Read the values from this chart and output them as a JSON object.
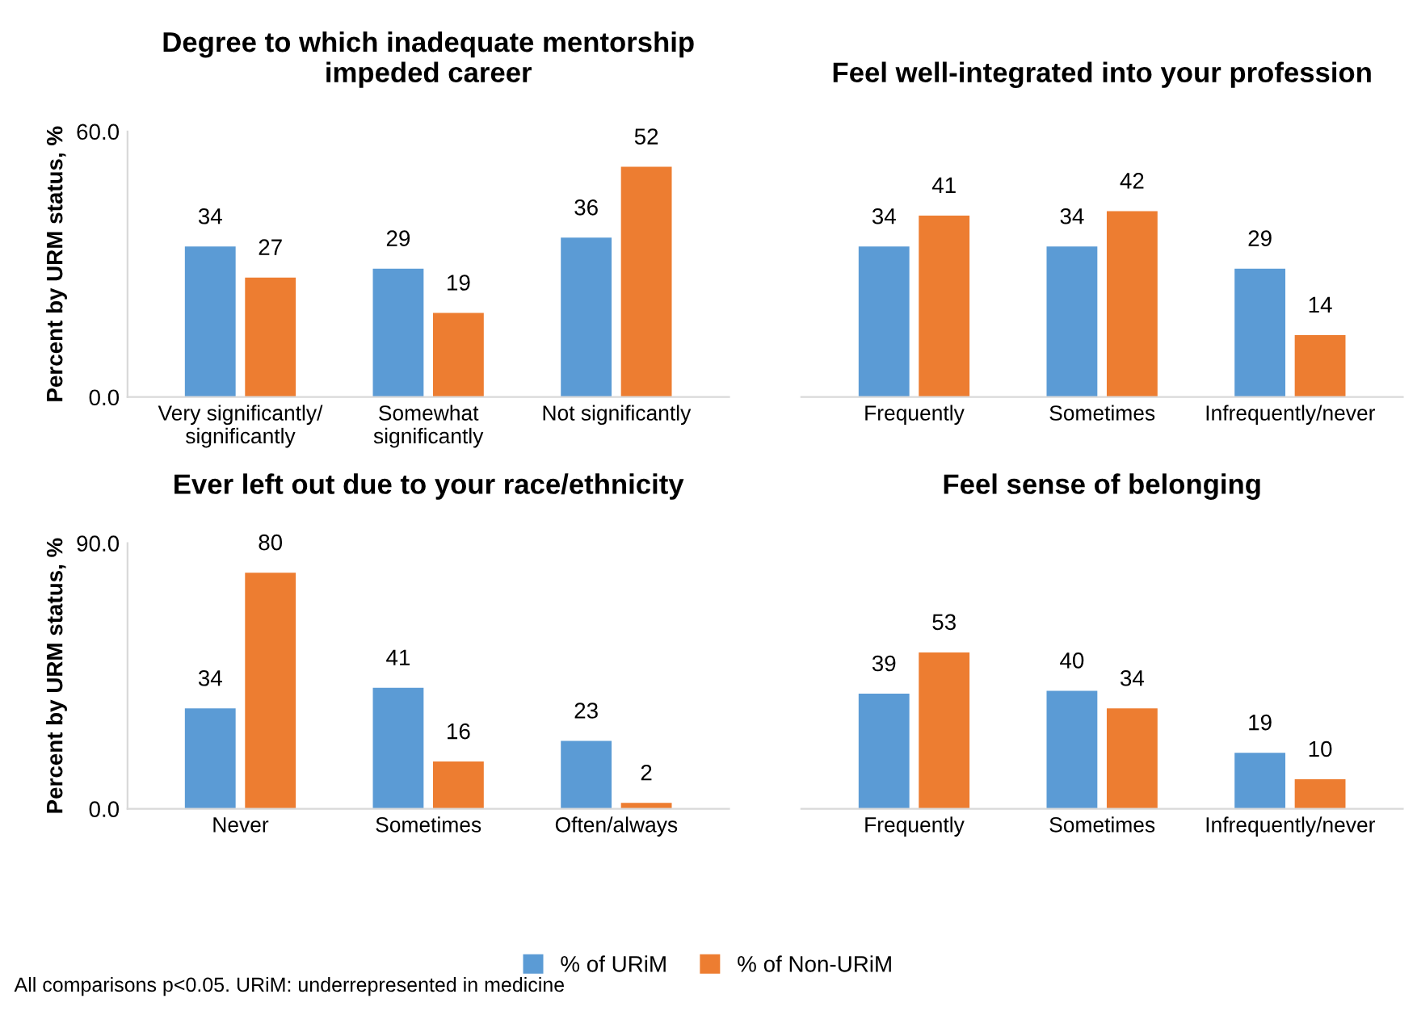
{
  "chart_data": [
    {
      "type": "bar",
      "title": "Degree to which inadequate mentorship\nimpeded career",
      "ylabel": "Percent by URM status, %",
      "categories": [
        "Very significantly/\nsignificantly",
        "Somewhat\nsignificantly",
        "Not significantly"
      ],
      "series": [
        {
          "name": "% of URiM",
          "color": "#5b9bd5",
          "values": [
            34,
            29,
            36
          ]
        },
        {
          "name": "% of Non-URiM",
          "color": "#ed7d31",
          "values": [
            27,
            19,
            52
          ]
        }
      ],
      "ylim": [
        0,
        60
      ],
      "yticks": [
        {
          "value": 0,
          "label": "0.0"
        },
        {
          "value": 60,
          "label": "60.0"
        }
      ],
      "data_labels": true,
      "grid": false,
      "legend": "bottom"
    },
    {
      "type": "bar",
      "title": "Feel well-integrated into your profession",
      "categories": [
        "Frequently",
        "Sometimes",
        "Infrequently/never"
      ],
      "series": [
        {
          "color": "#5b9bd5",
          "values": [
            34,
            34,
            29
          ]
        },
        {
          "color": "#ed7d31",
          "values": [
            41,
            42,
            14
          ]
        }
      ],
      "tick_labels": "x",
      "data_labels": true,
      "grid": false
    },
    {
      "type": "bar",
      "title": "Ever left out due to your race/ethnicity",
      "ylabel": "Percent by URM status, %",
      "categories": [
        "Never",
        "Sometimes",
        "Often/always"
      ],
      "series": [
        {
          "color": "#5b9bd5",
          "values": [
            34,
            41,
            23
          ]
        },
        {
          "color": "#ed7d31",
          "values": [
            80,
            16,
            2
          ]
        }
      ],
      "ylim": [
        0,
        90
      ],
      "yticks": [
        {
          "value": 0,
          "label": "0.0"
        },
        {
          "value": 90,
          "label": "90.0"
        }
      ],
      "data_labels": true,
      "grid": false
    },
    {
      "type": "bar",
      "title": "Feel sense of belonging",
      "categories": [
        "Frequently",
        "Sometimes",
        "Infrequently/never"
      ],
      "series": [
        {
          "color": "#5b9bd5",
          "values": [
            39,
            40,
            19
          ]
        },
        {
          "color": "#ed7d31",
          "values": [
            53,
            34,
            10
          ]
        }
      ],
      "tick_labels": "x",
      "data_labels": true,
      "grid": false,
      "annotations": [
        "All comparisons p<0.05. URiM: underrepresented in medicine"
      ]
    }
  ]
}
